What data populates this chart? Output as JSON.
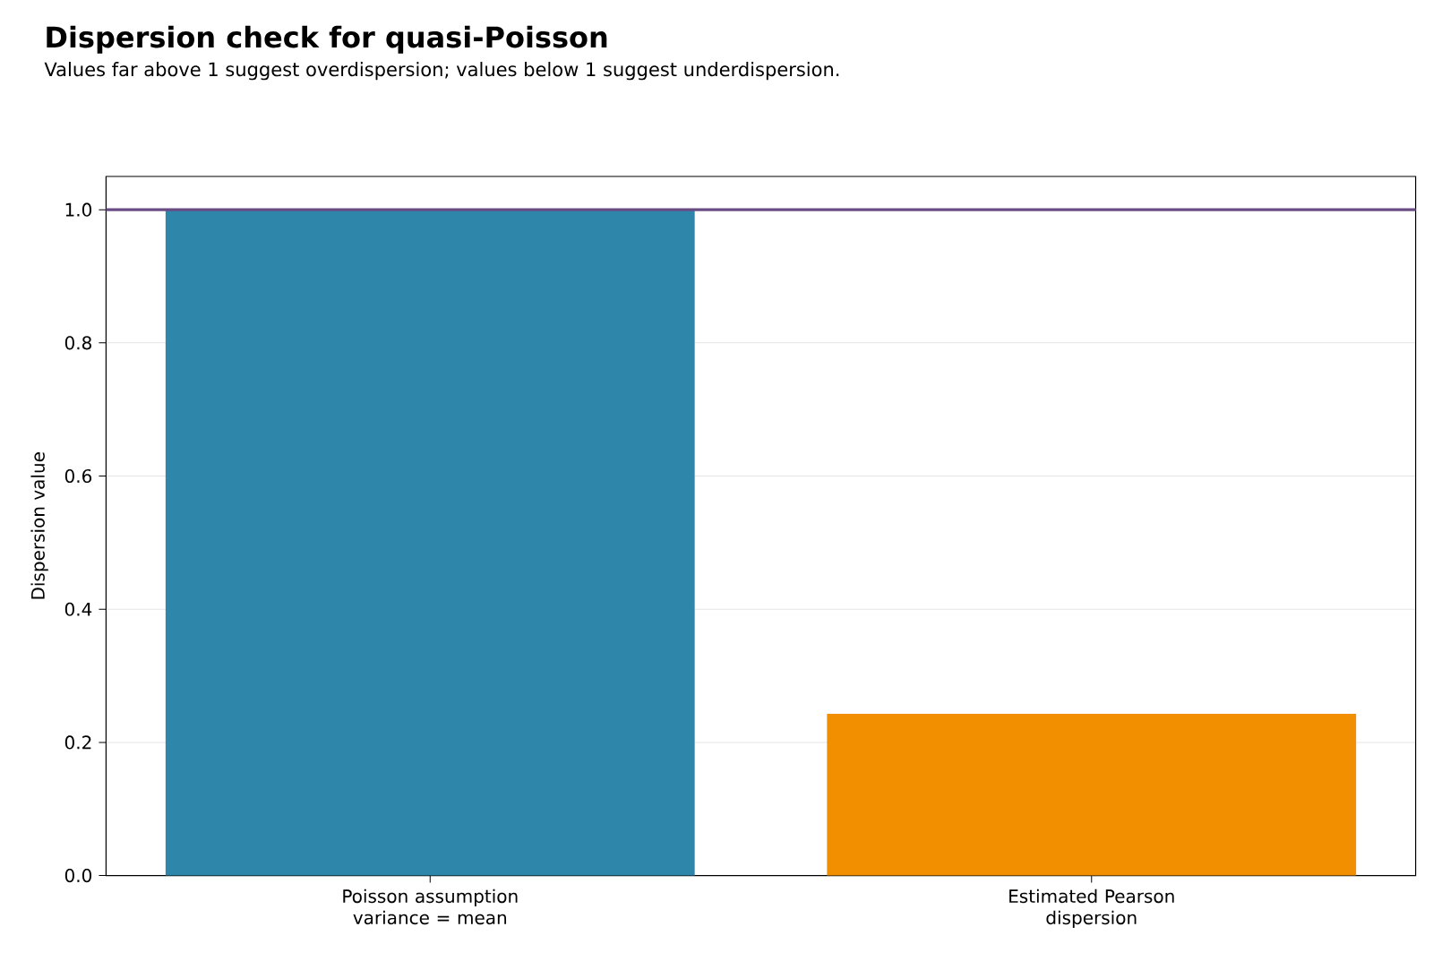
{
  "chart_data": {
    "type": "bar",
    "title": "Dispersion check for quasi-Poisson",
    "subtitle": "Values far above 1 suggest overdispersion; values below 1 suggest underdispersion.",
    "ylabel": "Dispersion value",
    "categories": [
      "Poisson assumption variance = mean",
      "Estimated Pearson dispersion"
    ],
    "values": [
      1.0,
      0.243
    ],
    "colors": [
      "#2e86ab",
      "#f18f01"
    ],
    "ylim": [
      0,
      1.05
    ],
    "yticks": [
      {
        "value": 0,
        "label": "0.0"
      },
      {
        "value": 0.2,
        "label": "0.2"
      },
      {
        "value": 0.4,
        "label": "0.4"
      },
      {
        "value": 0.6,
        "label": "0.6"
      },
      {
        "value": 0.8,
        "label": "0.8"
      },
      {
        "value": 1.0,
        "label": "1.0"
      }
    ],
    "grid": "y",
    "ref_lines": [
      {
        "axis": "y",
        "value": 1.0,
        "color": "#6a4c84"
      }
    ]
  }
}
